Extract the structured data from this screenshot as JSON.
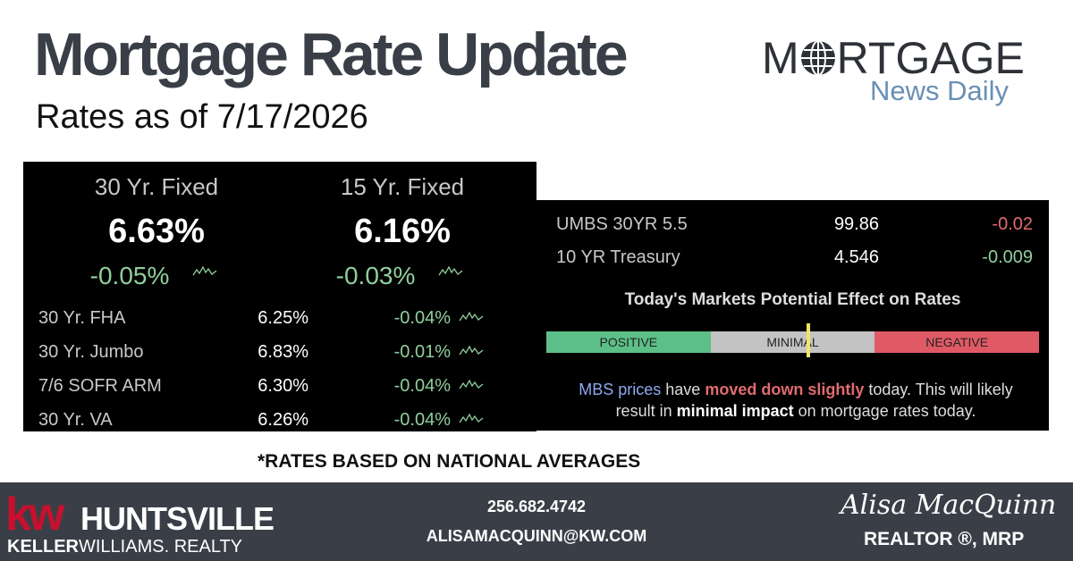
{
  "header": {
    "title": "Mortgage Rate Update",
    "subtitle": "Rates as of 7/17/2026"
  },
  "logo": {
    "m": "M",
    "rest": "RTGAGE",
    "sub": "News Daily"
  },
  "featured": [
    {
      "label": "30 Yr. Fixed",
      "rate": "6.63%",
      "change": "-0.05%"
    },
    {
      "label": "15 Yr. Fixed",
      "rate": "6.16%",
      "change": "-0.03%"
    }
  ],
  "rows": [
    {
      "label": "30 Yr. FHA",
      "rate": "6.25%",
      "change": "-0.04%"
    },
    {
      "label": "30 Yr. Jumbo",
      "rate": "6.83%",
      "change": "-0.01%"
    },
    {
      "label": "7/6 SOFR ARM",
      "rate": "6.30%",
      "change": "-0.04%"
    },
    {
      "label": "30 Yr. VA",
      "rate": "6.26%",
      "change": "-0.04%"
    }
  ],
  "markets": [
    {
      "label": "UMBS 30YR 5.5",
      "value": "99.86",
      "change": "-0.02"
    },
    {
      "label": "10 YR Treasury",
      "value": "4.546",
      "change": "-0.009"
    }
  ],
  "effect": {
    "title": "Today's Markets Potential Effect on Rates",
    "positive": "POSITIVE",
    "minimal": "MINIMAL",
    "negative": "NEGATIVE"
  },
  "summary": {
    "a": "MBS prices",
    "b": " have ",
    "c": "moved down slightly",
    "d": " today. This will likely result in ",
    "e": "minimal impact",
    "f": " on mortgage rates today."
  },
  "footnote": "*RATES BASED ON NATIONAL AVERAGES",
  "footer": {
    "kw": "kw",
    "city": "HUNTSVILLE",
    "keller": "KELLER",
    "williams": "WILLIAMS. REALTY",
    "phone": "256.682.4742",
    "email": "ALISAMACQUINN@KW.COM",
    "name": "Alisa MacQuinn",
    "role": "REALTOR ®, MRP"
  }
}
